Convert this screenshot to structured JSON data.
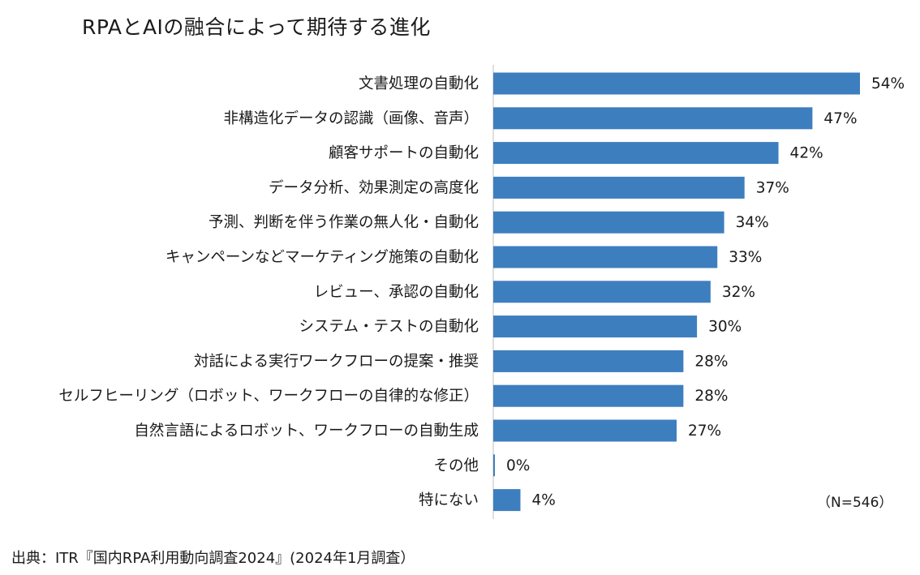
{
  "chart_data": {
    "type": "bar",
    "orientation": "horizontal",
    "title": "RPAとAIの融合によって期待する進化",
    "categories": [
      "文書処理の自動化",
      "非構造化データの認識（画像、音声）",
      "顧客サポートの自動化",
      "データ分析、効果測定の高度化",
      "予測、判断を伴う作業の無人化・自動化",
      "キャンペーンなどマーケティング施策の自動化",
      "レビュー、承認の自動化",
      "システム・テストの自動化",
      "対話による実行ワークフローの提案・推奨",
      "セルフヒーリング（ロボット、ワークフローの自律的な修正）",
      "自然言語によるロボット、ワークフローの自動生成",
      "その他",
      "特にない"
    ],
    "values": [
      54,
      47,
      42,
      37,
      34,
      33,
      32,
      30,
      28,
      28,
      27,
      0,
      4
    ],
    "value_labels": [
      "54%",
      "47%",
      "42%",
      "37%",
      "34%",
      "33%",
      "32%",
      "30%",
      "28%",
      "28%",
      "27%",
      "0%",
      "4%"
    ],
    "xlim": [
      0,
      54
    ],
    "grid": false,
    "color": "#3d7ebf",
    "axis_color": "#bfbfbf"
  },
  "note": "（N=546）",
  "source": "出典：ITR『国内RPA利用動向調査2024』(2024年1月調査）"
}
